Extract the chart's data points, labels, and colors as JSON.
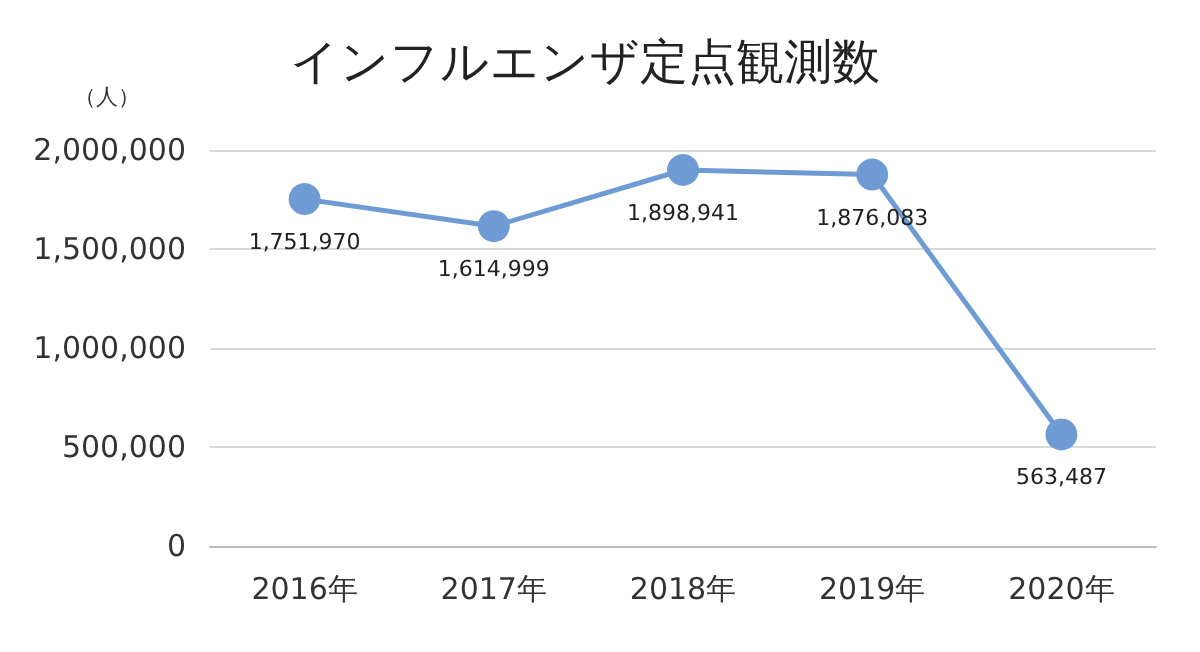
{
  "chart_data": {
    "type": "line",
    "title": "インフルエンザ定点観測数",
    "ylabel": "（人）",
    "categories": [
      "2016年",
      "2017年",
      "2018年",
      "2019年",
      "2020年"
    ],
    "series": [
      {
        "color": "#6f9bd4",
        "values": [
          1751970,
          1614999,
          1898941,
          1876083,
          563487
        ],
        "value_labels": [
          "1,751,970",
          "1,614,999",
          "1,898,941",
          "1,876,083",
          "563,487"
        ]
      }
    ],
    "ylim": [
      0,
      2000000
    ],
    "yticks": [
      0,
      {
        "value": 500000,
        "label": "500,000"
      },
      {
        "value": 1000000,
        "label": "1,000,000"
      },
      {
        "value": 1500000,
        "label": "1,500,000"
      },
      {
        "value": 2000000,
        "label": "2,000,000"
      }
    ],
    "grid": "y",
    "marker": "circle",
    "line_style": "solid"
  }
}
